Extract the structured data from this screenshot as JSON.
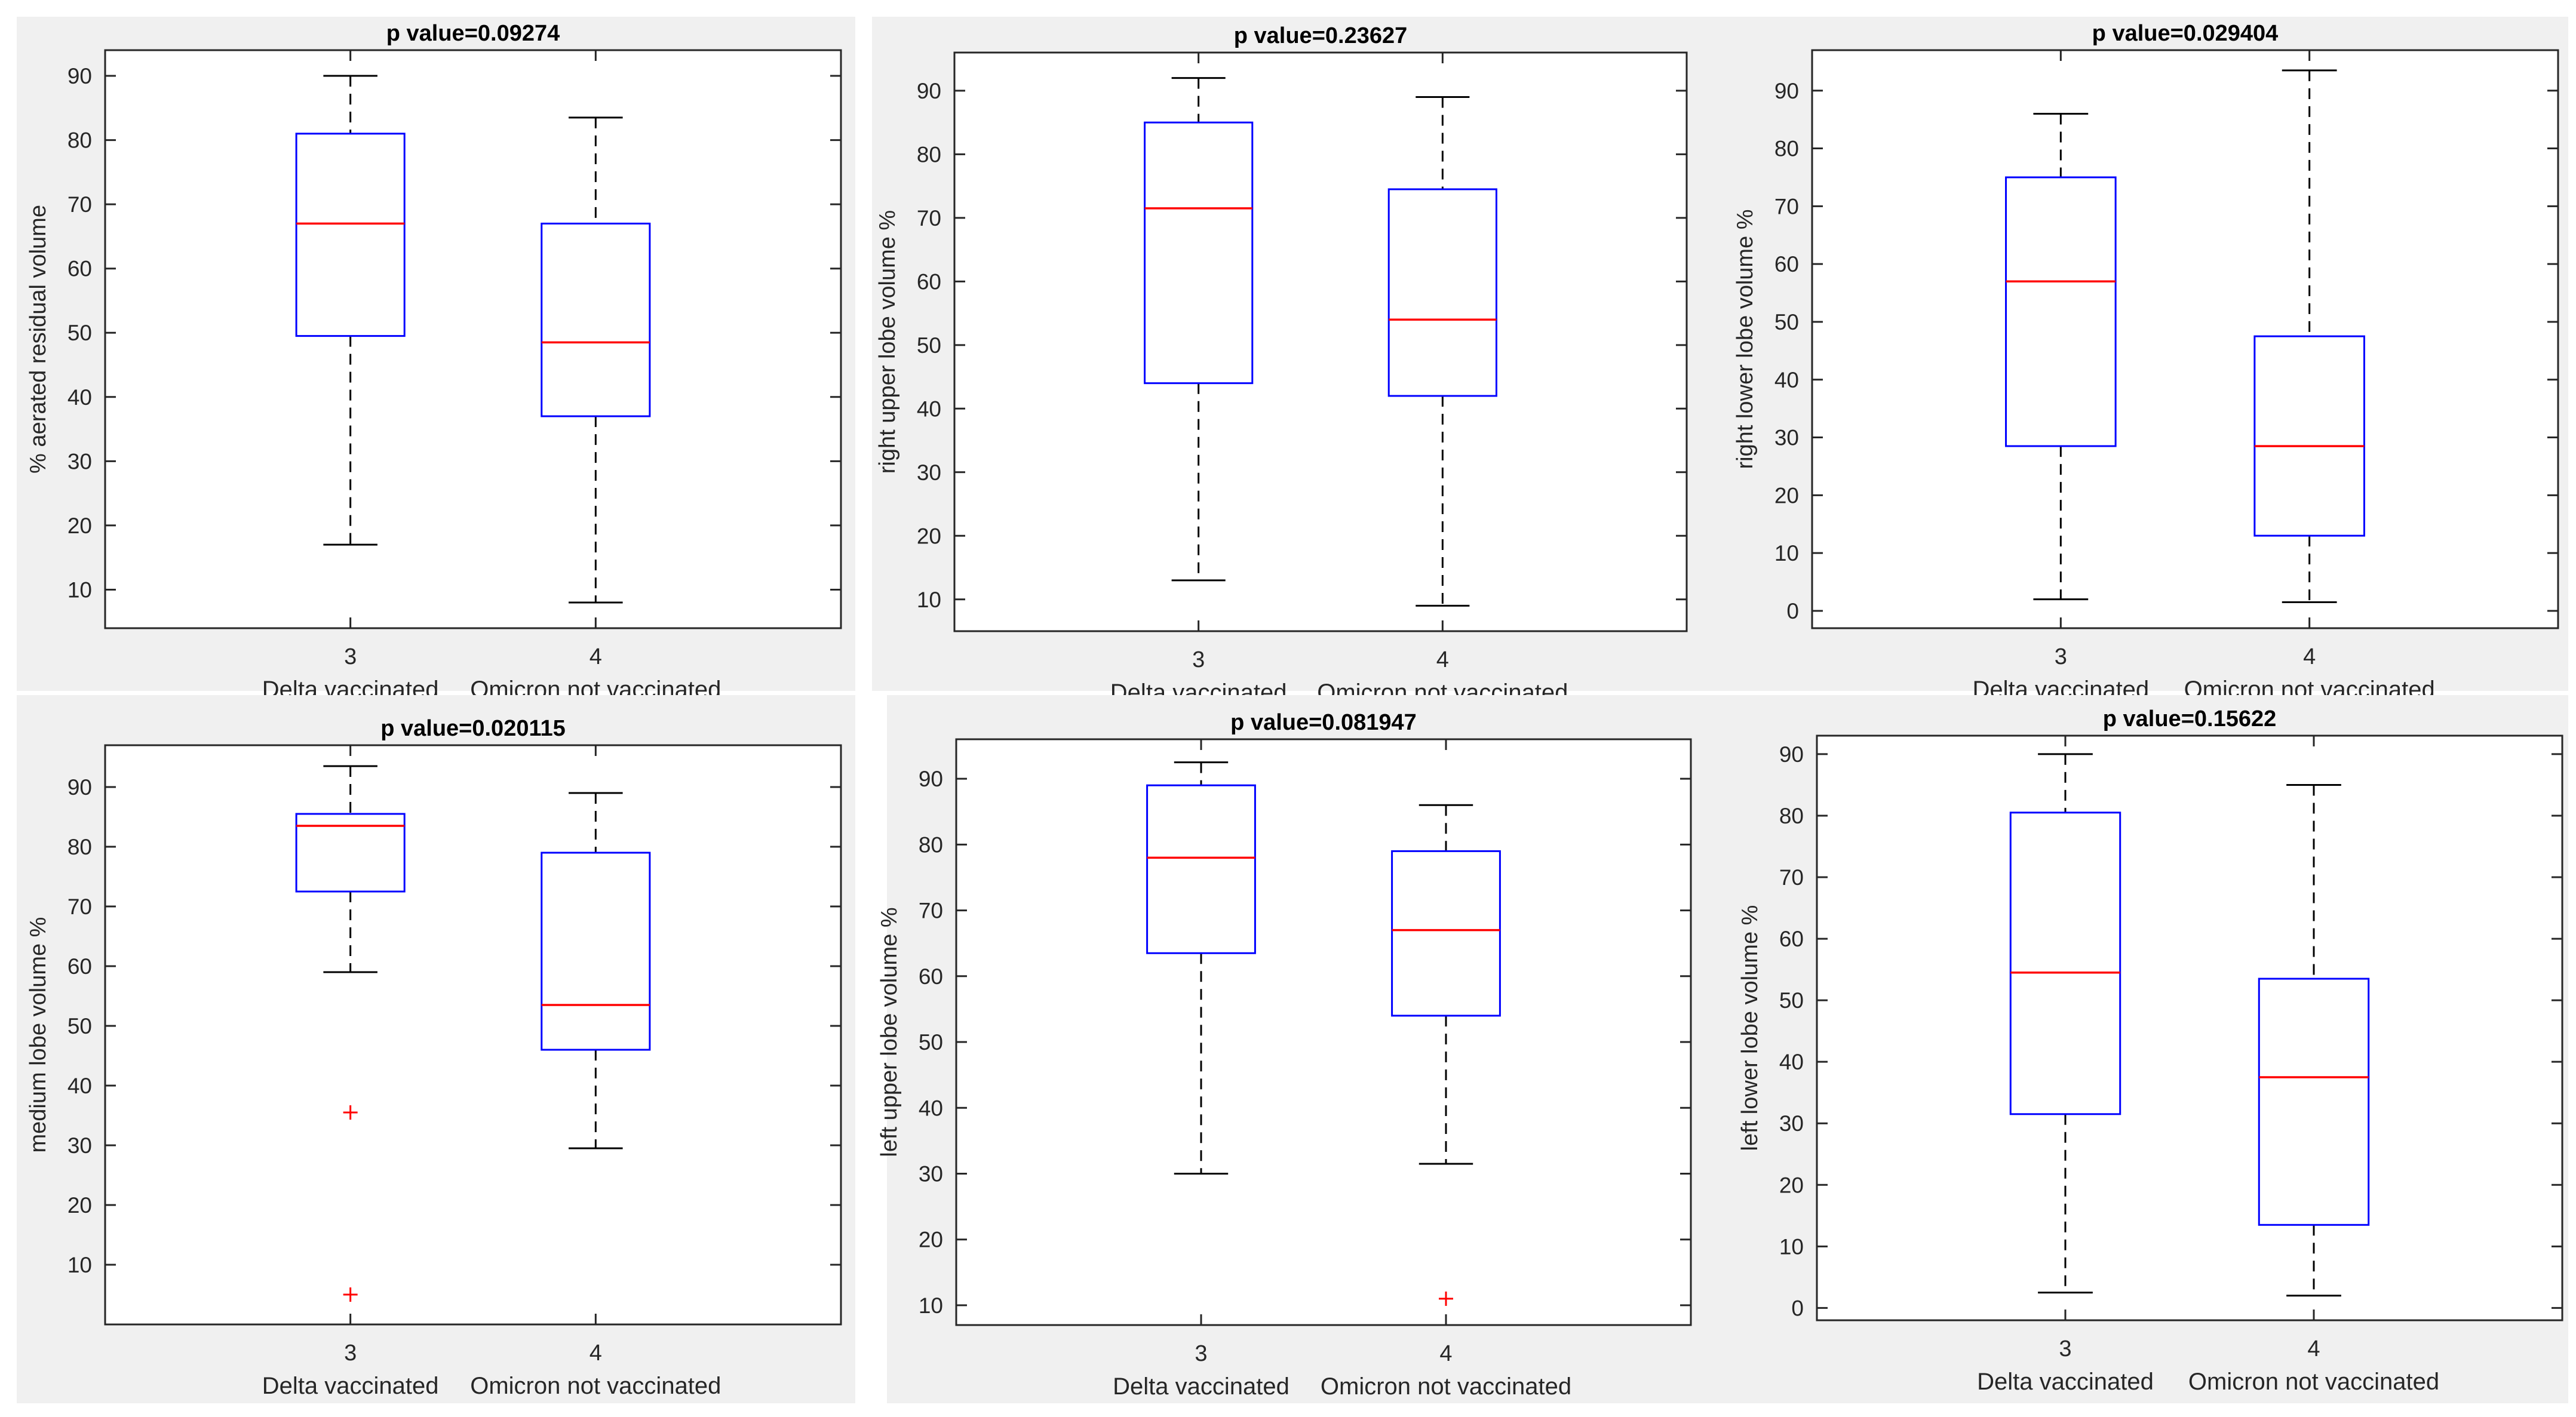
{
  "colors": {
    "panel_bg": "#f0f0f0",
    "axes_bg": "#ffffff",
    "axis": "#262626",
    "box": "#0000ff",
    "median": "#ff0000",
    "whisker": "#000000",
    "outlier": "#ff0000",
    "text": "#262626"
  },
  "chart_data": [
    {
      "type": "boxplot",
      "title": "p value=0.09274",
      "ylabel": "% aerated residual volume",
      "xlabel": "",
      "ylim": [
        4,
        94
      ],
      "yticks": [
        10,
        20,
        30,
        40,
        50,
        60,
        70,
        80,
        90
      ],
      "categories": [
        "3",
        "4"
      ],
      "category_labels": [
        "Delta vaccinated",
        "Omicron not vaccinated"
      ],
      "series": [
        {
          "name": "Delta vaccinated",
          "whisker_low": 17,
          "q1": 49.5,
          "median": 67,
          "q3": 81,
          "whisker_high": 90,
          "outliers": []
        },
        {
          "name": "Omicron not vaccinated",
          "whisker_low": 8,
          "q1": 37,
          "median": 48.5,
          "q3": 67,
          "whisker_high": 83.5,
          "outliers": []
        }
      ]
    },
    {
      "type": "boxplot",
      "title": "p value=0.23627",
      "ylabel": "right upper lobe volume %",
      "xlabel": "",
      "ylim": [
        5,
        96
      ],
      "yticks": [
        10,
        20,
        30,
        40,
        50,
        60,
        70,
        80,
        90
      ],
      "categories": [
        "3",
        "4"
      ],
      "category_labels": [
        "Delta vaccinated",
        "Omicron not vaccinated"
      ],
      "series": [
        {
          "name": "Delta vaccinated",
          "whisker_low": 13,
          "q1": 44,
          "median": 71.5,
          "q3": 85,
          "whisker_high": 92,
          "outliers": []
        },
        {
          "name": "Omicron not vaccinated",
          "whisker_low": 9,
          "q1": 42,
          "median": 54,
          "q3": 74.5,
          "whisker_high": 89,
          "outliers": []
        }
      ]
    },
    {
      "type": "boxplot",
      "title": "p value=0.029404",
      "ylabel": "right lower lobe volume %",
      "xlabel": "",
      "ylim": [
        -3,
        97
      ],
      "yticks": [
        0,
        10,
        20,
        30,
        40,
        50,
        60,
        70,
        80,
        90
      ],
      "categories": [
        "3",
        "4"
      ],
      "category_labels": [
        "Delta vaccinated",
        "Omicron not vaccinated"
      ],
      "series": [
        {
          "name": "Delta vaccinated",
          "whisker_low": 2,
          "q1": 28.5,
          "median": 57,
          "q3": 75,
          "whisker_high": 86,
          "outliers": []
        },
        {
          "name": "Omicron not vaccinated",
          "whisker_low": 1.5,
          "q1": 13,
          "median": 28.5,
          "q3": 47.5,
          "whisker_high": 93.5,
          "outliers": []
        }
      ]
    },
    {
      "type": "boxplot",
      "title": "p value=0.020115",
      "ylabel": "medium lobe volume %",
      "xlabel": "",
      "ylim": [
        0,
        97
      ],
      "yticks": [
        10,
        20,
        30,
        40,
        50,
        60,
        70,
        80,
        90
      ],
      "categories": [
        "3",
        "4"
      ],
      "category_labels": [
        "Delta vaccinated",
        "Omicron not vaccinated"
      ],
      "series": [
        {
          "name": "Delta vaccinated",
          "whisker_low": 59,
          "q1": 72.5,
          "median": 83.5,
          "q3": 85.5,
          "whisker_high": 93.5,
          "outliers": [
            35.5,
            5
          ]
        },
        {
          "name": "Omicron not vaccinated",
          "whisker_low": 29.5,
          "q1": 46,
          "median": 53.5,
          "q3": 79,
          "whisker_high": 89,
          "outliers": []
        }
      ]
    },
    {
      "type": "boxplot",
      "title": "p value=0.081947",
      "ylabel": "left upper lobe volume %",
      "xlabel": "",
      "ylim": [
        7,
        96
      ],
      "yticks": [
        10,
        20,
        30,
        40,
        50,
        60,
        70,
        80,
        90
      ],
      "categories": [
        "3",
        "4"
      ],
      "category_labels": [
        "Delta vaccinated",
        "Omicron not vaccinated"
      ],
      "series": [
        {
          "name": "Delta vaccinated",
          "whisker_low": 30,
          "q1": 63.5,
          "median": 78,
          "q3": 89,
          "whisker_high": 92.5,
          "outliers": []
        },
        {
          "name": "Omicron not vaccinated",
          "whisker_low": 31.5,
          "q1": 54,
          "median": 67,
          "q3": 79,
          "whisker_high": 86,
          "outliers": [
            11
          ]
        }
      ]
    },
    {
      "type": "boxplot",
      "title": "p value=0.15622",
      "ylabel": "left lower lobe volume %",
      "xlabel": "",
      "ylim": [
        -2,
        93
      ],
      "yticks": [
        0,
        10,
        20,
        30,
        40,
        50,
        60,
        70,
        80,
        90
      ],
      "categories": [
        "3",
        "4"
      ],
      "category_labels": [
        "Delta vaccinated",
        "Omicron not vaccinated"
      ],
      "series": [
        {
          "name": "Delta vaccinated",
          "whisker_low": 2.5,
          "q1": 31.5,
          "median": 54.5,
          "q3": 80.5,
          "whisker_high": 90,
          "outliers": []
        },
        {
          "name": "Omicron not vaccinated",
          "whisker_low": 2,
          "q1": 13.5,
          "median": 37.5,
          "q3": 53.5,
          "whisker_high": 85,
          "outliers": []
        }
      ]
    }
  ]
}
